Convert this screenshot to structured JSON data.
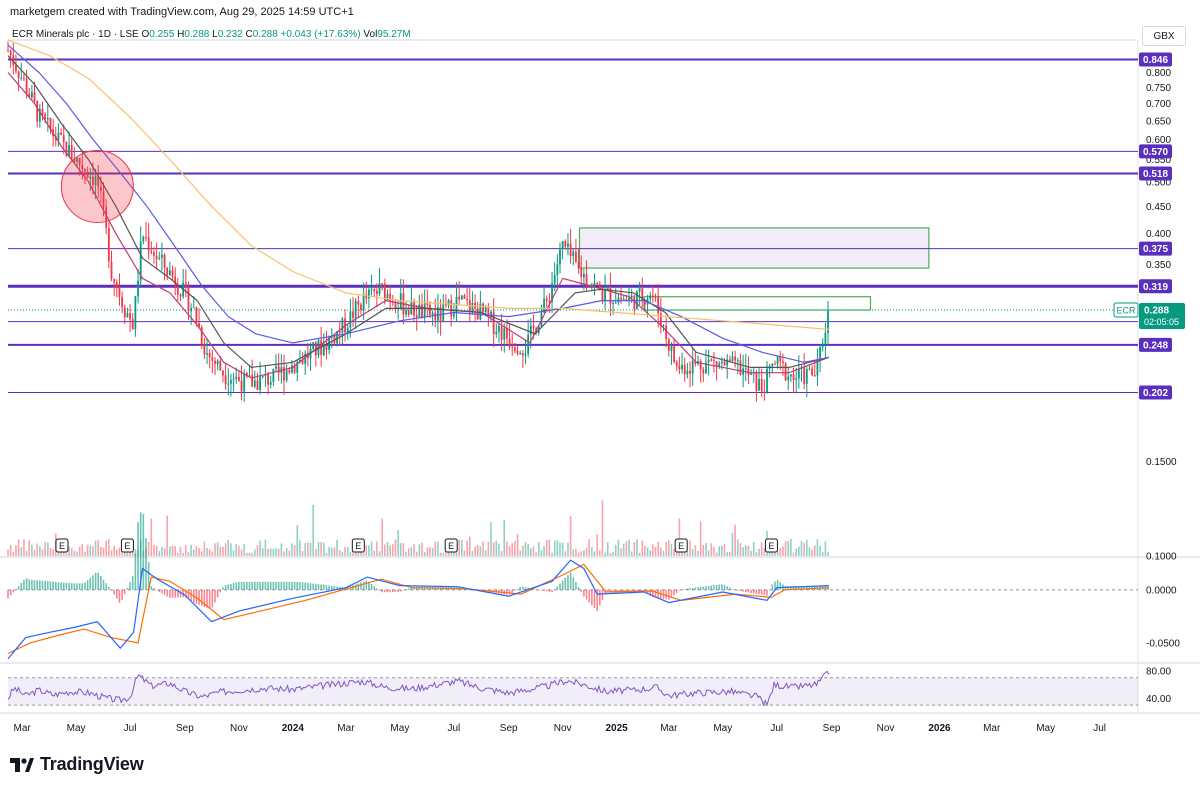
{
  "header": {
    "created_note": "marketgem created with TradingView.com, Aug 29, 2025 14:59 UTC+1",
    "currency": "GBX"
  },
  "legend": {
    "symbol": "ECR Minerals plc · 1D · LSE",
    "open_label": "O",
    "open": "0.255",
    "high_label": "H",
    "high": "0.288",
    "low_label": "L",
    "low": "0.232",
    "close_label": "C",
    "close": "0.288",
    "change": "+0.043 (+17.63%)",
    "vol_label": "Vol",
    "volume": "95.27M"
  },
  "brand": {
    "name": "TradingView"
  },
  "colors": {
    "level_line": "#5b2fbd",
    "up": "#089981",
    "down": "#f23645",
    "ma_fast": "#c0397a",
    "ma_mid": "#555555",
    "ma_slow": "#5a5ae6",
    "ma_long": "#f5c26b",
    "macd": "#2962ff",
    "signal": "#ff6d00",
    "rsi": "#7e57c2",
    "zone_fill": "#ede7f6",
    "zone_border": "#4caf50"
  },
  "chart_data": {
    "type": "candlestick",
    "symbol": "ECR",
    "interval": "1D",
    "y_scale": "log",
    "ylim": [
      0.1,
      0.92
    ],
    "last_price": "0.288",
    "countdown": "02:05:05",
    "price_ticks": [
      "0.800",
      "0.750",
      "0.700",
      "0.650",
      "0.600",
      "0.550",
      "0.500",
      "0.450",
      "0.400",
      "0.350",
      "0.200",
      "0.1500",
      "0.1000"
    ],
    "price_tick_values": [
      0.8,
      0.75,
      0.7,
      0.65,
      0.6,
      0.55,
      0.5,
      0.45,
      0.4,
      0.35,
      0.2,
      0.15,
      0.1
    ],
    "levels": [
      {
        "label": "0.846",
        "value": 0.846,
        "width": 2
      },
      {
        "label": "0.570",
        "value": 0.57,
        "width": 1
      },
      {
        "label": "0.518",
        "value": 0.518,
        "width": 2
      },
      {
        "label": "0.375",
        "value": 0.375,
        "width": 1
      },
      {
        "label": "0.319",
        "value": 0.319,
        "width": 3
      },
      {
        "label": "0.274",
        "value": 0.274,
        "width": 1
      },
      {
        "label": "0.248",
        "value": 0.248,
        "width": 2
      },
      {
        "label": "0.202",
        "value": 0.202,
        "width": 1
      }
    ],
    "zones": [
      {
        "start": "2024-11-20",
        "end": "2025-12-20",
        "low": 0.345,
        "high": 0.41,
        "filled": true
      },
      {
        "start": "2025-02-01",
        "end": "2025-10-15",
        "low": 0.288,
        "high": 0.305,
        "filled": false
      }
    ],
    "highlight_circle": {
      "date": "2023-05-25",
      "price": 0.49
    },
    "time_labels": [
      "Mar",
      "May",
      "Jul",
      "Sep",
      "Nov",
      "2024",
      "Mar",
      "May",
      "Jul",
      "Sep",
      "Nov",
      "2025",
      "Mar",
      "May",
      "Jul",
      "Sep",
      "Nov",
      "2026",
      "Mar",
      "May",
      "Jul"
    ],
    "time_label_dates": [
      "2023-03-01",
      "2023-05-01",
      "2023-07-01",
      "2023-09-01",
      "2023-11-01",
      "2024-01-01",
      "2024-03-01",
      "2024-05-01",
      "2024-07-01",
      "2024-09-01",
      "2024-11-01",
      "2025-01-01",
      "2025-03-01",
      "2025-05-01",
      "2025-07-01",
      "2025-09-01",
      "2025-11-01",
      "2026-01-01",
      "2026-03-01",
      "2026-05-01",
      "2026-07-01"
    ],
    "date_range": [
      "2023-02-13",
      "2026-08-10"
    ],
    "last_date": "2025-08-29",
    "earnings_marker": "E",
    "earnings_dates": [
      "2023-04-15",
      "2023-06-28",
      "2024-03-15",
      "2024-06-28",
      "2025-03-15",
      "2025-06-25"
    ],
    "price_path": [
      [
        "2023-02-13",
        0.88
      ],
      [
        "2023-03-01",
        0.78
      ],
      [
        "2023-03-20",
        0.66
      ],
      [
        "2023-04-10",
        0.6
      ],
      [
        "2023-05-01",
        0.55
      ],
      [
        "2023-05-25",
        0.5
      ],
      [
        "2023-06-10",
        0.34
      ],
      [
        "2023-06-25",
        0.29
      ],
      [
        "2023-07-05",
        0.27
      ],
      [
        "2023-07-15",
        0.4
      ],
      [
        "2023-08-01",
        0.36
      ],
      [
        "2023-08-20",
        0.33
      ],
      [
        "2023-09-10",
        0.29
      ],
      [
        "2023-09-25",
        0.24
      ],
      [
        "2023-10-15",
        0.22
      ],
      [
        "2023-11-10",
        0.21
      ],
      [
        "2023-12-10",
        0.215
      ],
      [
        "2024-01-05",
        0.23
      ],
      [
        "2024-02-01",
        0.245
      ],
      [
        "2024-02-25",
        0.265
      ],
      [
        "2024-03-20",
        0.3
      ],
      [
        "2024-04-10",
        0.315
      ],
      [
        "2024-05-10",
        0.29
      ],
      [
        "2024-06-15",
        0.28
      ],
      [
        "2024-07-05",
        0.3
      ],
      [
        "2024-08-01",
        0.285
      ],
      [
        "2024-09-01",
        0.255
      ],
      [
        "2024-09-20",
        0.245
      ],
      [
        "2024-10-15",
        0.3
      ],
      [
        "2024-11-01",
        0.38
      ],
      [
        "2024-11-20",
        0.34
      ],
      [
        "2024-12-15",
        0.31
      ],
      [
        "2025-01-15",
        0.3
      ],
      [
        "2025-02-10",
        0.31
      ],
      [
        "2025-02-25",
        0.26
      ],
      [
        "2025-03-10",
        0.225
      ],
      [
        "2025-04-15",
        0.23
      ],
      [
        "2025-05-20",
        0.225
      ],
      [
        "2025-06-15",
        0.205
      ],
      [
        "2025-06-28",
        0.23
      ],
      [
        "2025-07-20",
        0.215
      ],
      [
        "2025-08-15",
        0.22
      ],
      [
        "2025-08-29",
        0.288
      ]
    ],
    "moving_averages": [
      {
        "color_key": "ma_fast",
        "path": [
          [
            "2023-02-13",
            0.8
          ],
          [
            "2023-03-15",
            0.7
          ],
          [
            "2023-04-15",
            0.58
          ],
          [
            "2023-05-15",
            0.5
          ],
          [
            "2023-06-15",
            0.4
          ],
          [
            "2023-07-15",
            0.33
          ],
          [
            "2023-08-15",
            0.31
          ],
          [
            "2023-09-15",
            0.27
          ],
          [
            "2023-10-15",
            0.23
          ],
          [
            "2023-11-15",
            0.215
          ],
          [
            "2024-01-01",
            0.225
          ],
          [
            "2024-03-01",
            0.27
          ],
          [
            "2024-04-15",
            0.3
          ],
          [
            "2024-06-01",
            0.29
          ],
          [
            "2024-08-01",
            0.285
          ],
          [
            "2024-09-25",
            0.25
          ],
          [
            "2024-11-01",
            0.33
          ],
          [
            "2024-12-01",
            0.32
          ],
          [
            "2025-01-15",
            0.305
          ],
          [
            "2025-02-20",
            0.27
          ],
          [
            "2025-04-01",
            0.23
          ],
          [
            "2025-06-01",
            0.22
          ],
          [
            "2025-07-15",
            0.22
          ],
          [
            "2025-08-29",
            0.235
          ]
        ]
      },
      {
        "color_key": "ma_mid",
        "path": [
          [
            "2023-02-13",
            0.86
          ],
          [
            "2023-03-15",
            0.76
          ],
          [
            "2023-04-15",
            0.64
          ],
          [
            "2023-05-15",
            0.55
          ],
          [
            "2023-06-15",
            0.45
          ],
          [
            "2023-07-15",
            0.36
          ],
          [
            "2023-08-15",
            0.33
          ],
          [
            "2023-09-15",
            0.3
          ],
          [
            "2023-10-15",
            0.25
          ],
          [
            "2023-11-15",
            0.225
          ],
          [
            "2024-01-01",
            0.23
          ],
          [
            "2024-03-01",
            0.26
          ],
          [
            "2024-04-15",
            0.29
          ],
          [
            "2024-06-01",
            0.29
          ],
          [
            "2024-08-01",
            0.285
          ],
          [
            "2024-10-01",
            0.26
          ],
          [
            "2024-11-15",
            0.31
          ],
          [
            "2024-12-15",
            0.315
          ],
          [
            "2025-01-20",
            0.31
          ],
          [
            "2025-02-25",
            0.285
          ],
          [
            "2025-04-01",
            0.24
          ],
          [
            "2025-06-01",
            0.225
          ],
          [
            "2025-07-15",
            0.225
          ],
          [
            "2025-08-29",
            0.235
          ]
        ]
      },
      {
        "color_key": "ma_slow",
        "path": [
          [
            "2023-02-13",
            0.9
          ],
          [
            "2023-03-20",
            0.8
          ],
          [
            "2023-04-20",
            0.7
          ],
          [
            "2023-05-20",
            0.6
          ],
          [
            "2023-06-20",
            0.52
          ],
          [
            "2023-07-20",
            0.45
          ],
          [
            "2023-08-20",
            0.38
          ],
          [
            "2023-09-20",
            0.32
          ],
          [
            "2023-10-20",
            0.28
          ],
          [
            "2023-11-20",
            0.26
          ],
          [
            "2024-01-01",
            0.25
          ],
          [
            "2024-03-01",
            0.26
          ],
          [
            "2024-05-01",
            0.275
          ],
          [
            "2024-07-01",
            0.285
          ],
          [
            "2024-09-01",
            0.28
          ],
          [
            "2024-11-01",
            0.29
          ],
          [
            "2024-12-15",
            0.3
          ],
          [
            "2025-02-01",
            0.3
          ],
          [
            "2025-03-15",
            0.28
          ],
          [
            "2025-05-01",
            0.255
          ],
          [
            "2025-06-15",
            0.24
          ],
          [
            "2025-08-01",
            0.23
          ],
          [
            "2025-08-29",
            0.235
          ]
        ]
      },
      {
        "color_key": "ma_long",
        "path": [
          [
            "2023-02-13",
            0.92
          ],
          [
            "2023-04-01",
            0.86
          ],
          [
            "2023-05-15",
            0.78
          ],
          [
            "2023-07-01",
            0.66
          ],
          [
            "2023-08-15",
            0.55
          ],
          [
            "2023-10-01",
            0.45
          ],
          [
            "2023-11-15",
            0.38
          ],
          [
            "2024-01-01",
            0.34
          ],
          [
            "2024-03-01",
            0.31
          ],
          [
            "2024-05-01",
            0.3
          ],
          [
            "2024-07-01",
            0.295
          ],
          [
            "2024-09-01",
            0.29
          ],
          [
            "2024-11-01",
            0.29
          ],
          [
            "2025-01-01",
            0.285
          ],
          [
            "2025-03-01",
            0.28
          ],
          [
            "2025-05-01",
            0.275
          ],
          [
            "2025-07-01",
            0.27
          ],
          [
            "2025-08-29",
            0.265
          ]
        ]
      }
    ],
    "macd": {
      "ticks": [
        "0.0000",
        "-0.0500"
      ],
      "tick_values": [
        0,
        -0.05
      ],
      "ylim": [
        -0.068,
        0.03
      ],
      "macd_path": [
        [
          "2023-02-13",
          -0.065
        ],
        [
          "2023-03-05",
          -0.045
        ],
        [
          "2023-04-01",
          -0.04
        ],
        [
          "2023-05-01",
          -0.035
        ],
        [
          "2023-05-25",
          -0.03
        ],
        [
          "2023-06-20",
          -0.055
        ],
        [
          "2023-07-05",
          -0.04
        ],
        [
          "2023-07-15",
          0.02
        ],
        [
          "2023-08-01",
          0.01
        ],
        [
          "2023-09-01",
          -0.005
        ],
        [
          "2023-10-01",
          -0.03
        ],
        [
          "2023-11-01",
          -0.02
        ],
        [
          "2024-01-01",
          -0.008
        ],
        [
          "2024-03-01",
          0.002
        ],
        [
          "2024-03-25",
          0.012
        ],
        [
          "2024-05-01",
          0.004
        ],
        [
          "2024-07-05",
          0.003
        ],
        [
          "2024-09-01",
          -0.006
        ],
        [
          "2024-10-20",
          0.008
        ],
        [
          "2024-11-10",
          0.028
        ],
        [
          "2024-11-25",
          0.02
        ],
        [
          "2024-12-10",
          -0.004
        ],
        [
          "2025-02-01",
          -0.002
        ],
        [
          "2025-03-01",
          -0.012
        ],
        [
          "2025-05-01",
          -0.002
        ],
        [
          "2025-06-20",
          -0.01
        ],
        [
          "2025-07-01",
          0.002
        ],
        [
          "2025-08-29",
          0.004
        ]
      ],
      "signal_path": [
        [
          "2023-02-13",
          -0.06
        ],
        [
          "2023-03-10",
          -0.05
        ],
        [
          "2023-04-10",
          -0.043
        ],
        [
          "2023-05-10",
          -0.037
        ],
        [
          "2023-06-10",
          -0.045
        ],
        [
          "2023-07-10",
          -0.05
        ],
        [
          "2023-07-25",
          0.012
        ],
        [
          "2023-08-15",
          0.008
        ],
        [
          "2023-09-15",
          -0.008
        ],
        [
          "2023-10-15",
          -0.028
        ],
        [
          "2023-11-15",
          -0.022
        ],
        [
          "2024-01-15",
          -0.01
        ],
        [
          "2024-03-15",
          0.004
        ],
        [
          "2024-04-10",
          0.01
        ],
        [
          "2024-05-15",
          0.002
        ],
        [
          "2024-07-15",
          0.001
        ],
        [
          "2024-09-15",
          -0.004
        ],
        [
          "2024-11-01",
          0.014
        ],
        [
          "2024-11-25",
          0.024
        ],
        [
          "2024-12-20",
          -0.002
        ],
        [
          "2025-02-10",
          -0.001
        ],
        [
          "2025-03-15",
          -0.01
        ],
        [
          "2025-05-15",
          -0.004
        ],
        [
          "2025-06-25",
          -0.007
        ],
        [
          "2025-07-10",
          0.0
        ],
        [
          "2025-08-29",
          0.002
        ]
      ]
    },
    "rsi": {
      "ticks": [
        "80.00",
        "40.00"
      ],
      "tick_values": [
        80,
        40
      ],
      "ylim": [
        20,
        90
      ],
      "band": [
        30,
        70
      ],
      "path": [
        [
          "2023-02-13",
          40
        ],
        [
          "2023-02-20",
          55
        ],
        [
          "2023-03-05",
          44
        ],
        [
          "2023-03-20",
          52
        ],
        [
          "2023-04-05",
          45
        ],
        [
          "2023-04-25",
          50
        ],
        [
          "2023-05-15",
          48
        ],
        [
          "2023-06-05",
          40
        ],
        [
          "2023-06-20",
          37
        ],
        [
          "2023-07-01",
          42
        ],
        [
          "2023-07-10",
          74
        ],
        [
          "2023-07-25",
          58
        ],
        [
          "2023-08-15",
          62
        ],
        [
          "2023-09-01",
          50
        ],
        [
          "2023-09-20",
          42
        ],
        [
          "2023-10-10",
          49
        ],
        [
          "2023-11-01",
          52
        ],
        [
          "2023-12-01",
          55
        ],
        [
          "2024-01-01",
          53
        ],
        [
          "2024-02-01",
          58
        ],
        [
          "2024-03-20",
          65
        ],
        [
          "2024-04-15",
          56
        ],
        [
          "2024-05-15",
          54
        ],
        [
          "2024-07-05",
          65
        ],
        [
          "2024-08-01",
          55
        ],
        [
          "2024-09-01",
          48
        ],
        [
          "2024-09-20",
          52
        ],
        [
          "2024-10-15",
          58
        ],
        [
          "2024-11-05",
          66
        ],
        [
          "2024-11-25",
          60
        ],
        [
          "2024-12-20",
          50
        ],
        [
          "2025-01-20",
          52
        ],
        [
          "2025-02-15",
          56
        ],
        [
          "2025-03-01",
          44
        ],
        [
          "2025-04-01",
          48
        ],
        [
          "2025-05-10",
          50
        ],
        [
          "2025-06-10",
          42
        ],
        [
          "2025-06-20",
          30
        ],
        [
          "2025-06-28",
          60
        ],
        [
          "2025-07-20",
          56
        ],
        [
          "2025-08-15",
          60
        ],
        [
          "2025-08-29",
          78
        ]
      ]
    }
  }
}
